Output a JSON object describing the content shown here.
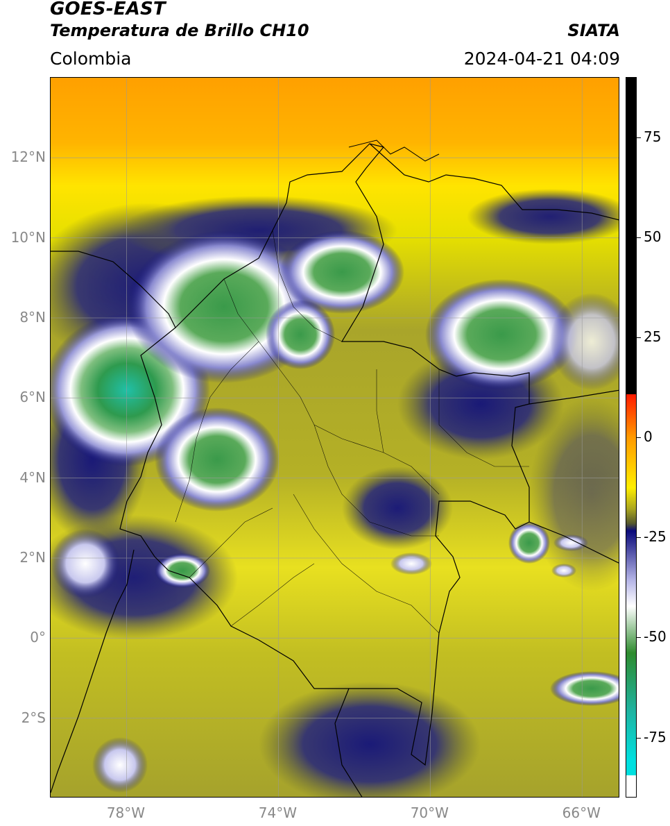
{
  "header": {
    "satellite": "GOES-EAST",
    "product": "Temperatura de Brillo CH10",
    "brand": "SIATA",
    "region": "Colombia",
    "timestamp": "2024-04-21 04:09"
  },
  "map": {
    "lat_range": [
      -4.0,
      14.0
    ],
    "lon_range": [
      -80.0,
      -65.0
    ],
    "lat_ticks": [
      {
        "value": 12,
        "label": "12°N"
      },
      {
        "value": 10,
        "label": "10°N"
      },
      {
        "value": 8,
        "label": "8°N"
      },
      {
        "value": 6,
        "label": "6°N"
      },
      {
        "value": 4,
        "label": "4°N"
      },
      {
        "value": 2,
        "label": "2°N"
      },
      {
        "value": 0,
        "label": "0°"
      },
      {
        "value": -2,
        "label": "2°S"
      }
    ],
    "lon_ticks": [
      {
        "value": -78,
        "label": "78°W"
      },
      {
        "value": -74,
        "label": "74°W"
      },
      {
        "value": -70,
        "label": "70°W"
      },
      {
        "value": -66,
        "label": "66°W"
      }
    ],
    "gridlines": true
  },
  "colorbar": {
    "range": [
      -90,
      90
    ],
    "ticks": [
      {
        "value": 75,
        "label": "75"
      },
      {
        "value": 50,
        "label": "50"
      },
      {
        "value": 25,
        "label": "25"
      },
      {
        "value": 0,
        "label": "0"
      },
      {
        "value": -25,
        "label": "-25"
      },
      {
        "value": -50,
        "label": "-50"
      },
      {
        "value": -75,
        "label": "-75"
      }
    ],
    "colors": {
      "black": "#000000",
      "red": "#ff1a00",
      "orange": "#ff9a00",
      "yellow": "#ffee00",
      "olive": "#a8a420",
      "dark_olive": "#55582e",
      "navy": "#0a0a7a",
      "lavender": "#b8b8e8",
      "white": "#ffffff",
      "green": "#2e8b2e",
      "teal": "#1fb3a0",
      "cyan": "#00e0e0"
    }
  }
}
